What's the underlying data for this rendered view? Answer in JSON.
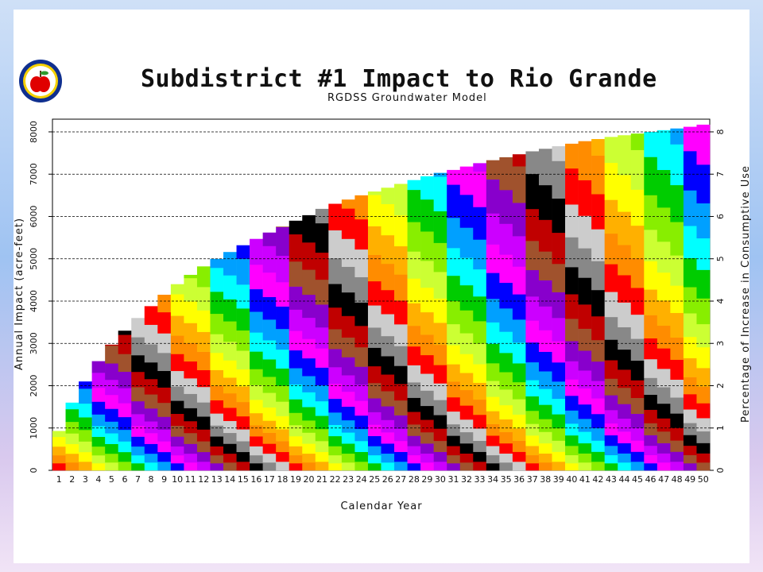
{
  "slide": {
    "title": "Subdistrict #1 Impact to Rio Grande",
    "subtitle": "RGDSS Groundwater Model"
  },
  "chart_data": {
    "type": "bar",
    "stacked": true,
    "title": "Subdistrict #1 Impact to Rio Grande",
    "subtitle": "RGDSS Groundwater Model",
    "xlabel": "Calendar Year",
    "ylabel": "Annual Impact (acre-feet)",
    "y2label": "Percentage of Increase in Consumptive Use",
    "categories": [
      "1",
      "2",
      "3",
      "4",
      "5",
      "6",
      "7",
      "8",
      "9",
      "10",
      "11",
      "12",
      "13",
      "14",
      "15",
      "16",
      "17",
      "18",
      "19",
      "20",
      "21",
      "22",
      "23",
      "24",
      "25",
      "26",
      "27",
      "28",
      "29",
      "30",
      "31",
      "32",
      "33",
      "34",
      "35",
      "36",
      "37",
      "38",
      "39",
      "40",
      "41",
      "42",
      "43",
      "44",
      "45",
      "46",
      "47",
      "48",
      "49",
      "50"
    ],
    "values": [
      930,
      1600,
      2100,
      2580,
      2970,
      3300,
      3600,
      3880,
      4150,
      4400,
      4620,
      4820,
      5000,
      5160,
      5320,
      5470,
      5620,
      5760,
      5900,
      6030,
      6180,
      6300,
      6400,
      6500,
      6590,
      6680,
      6770,
      6860,
      6950,
      7030,
      7100,
      7180,
      7260,
      7330,
      7400,
      7470,
      7540,
      7600,
      7660,
      7720,
      7780,
      7830,
      7880,
      7920,
      7960,
      8000,
      8040,
      8080,
      8120,
      8170
    ],
    "ylim": [
      0,
      8300
    ],
    "yticks": [
      0,
      1000,
      2000,
      3000,
      4000,
      5000,
      6000,
      7000,
      8000
    ],
    "y2lim": [
      0,
      8.3
    ],
    "y2ticks": [
      0,
      1,
      2,
      3,
      4,
      5,
      6,
      7,
      8
    ],
    "grid": "horizontal dashed",
    "legend": "none",
    "palette": [
      "#ff0000",
      "#ff8c00",
      "#ffb000",
      "#ffff00",
      "#ccff33",
      "#88ee00",
      "#00cc00",
      "#00ffff",
      "#00a0ff",
      "#0000ff",
      "#ff00ff",
      "#cc00ff",
      "#8800cc",
      "#a0522d",
      "#c00000",
      "#000000",
      "#888888",
      "#cccccc"
    ]
  }
}
